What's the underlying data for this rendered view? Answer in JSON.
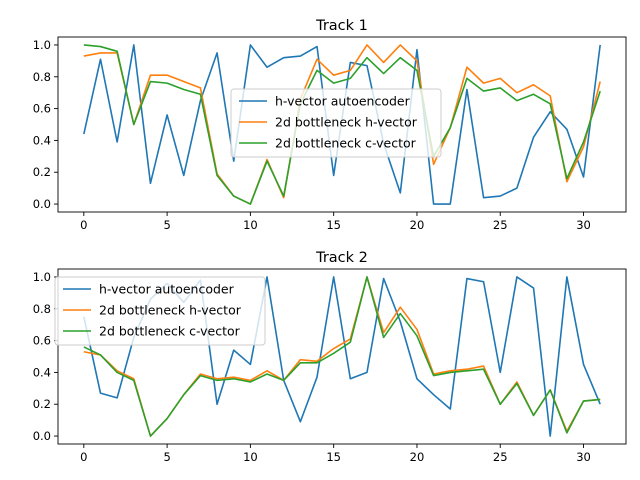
{
  "chart_data": [
    {
      "type": "line",
      "title": "Track 1",
      "xlabel": "",
      "ylabel": "",
      "xlim": [
        -1.55,
        32.55
      ],
      "ylim": [
        -0.05,
        1.05
      ],
      "xticks": [
        0,
        5,
        10,
        15,
        20,
        25,
        30
      ],
      "yticks": [
        0.0,
        0.2,
        0.4,
        0.6,
        0.8,
        1.0
      ],
      "xtick_labels": [
        "0",
        "5",
        "10",
        "15",
        "20",
        "25",
        "30"
      ],
      "ytick_labels": [
        "0.0",
        "0.2",
        "0.4",
        "0.6",
        "0.8",
        "1.0"
      ],
      "grid": false,
      "legend_position": "center",
      "x": [
        0,
        1,
        2,
        3,
        4,
        5,
        6,
        7,
        8,
        9,
        10,
        11,
        12,
        13,
        14,
        15,
        16,
        17,
        18,
        19,
        20,
        21,
        22,
        23,
        24,
        25,
        26,
        27,
        28,
        29,
        30,
        31
      ],
      "series": [
        {
          "name": "h-vector autoencoder",
          "color": "#1f77b4",
          "values": [
            0.44,
            0.91,
            0.39,
            1.0,
            0.13,
            0.56,
            0.18,
            0.65,
            0.95,
            0.27,
            1.0,
            0.86,
            0.92,
            0.93,
            0.99,
            0.18,
            0.89,
            0.87,
            0.38,
            0.07,
            0.97,
            0.0,
            0.0,
            0.72,
            0.04,
            0.05,
            0.1,
            0.42,
            0.58,
            0.47,
            0.17,
            1.0
          ]
        },
        {
          "name": "2d bottleneck h-vector",
          "color": "#ff7f0e",
          "values": [
            0.93,
            0.95,
            0.95,
            0.5,
            0.81,
            0.81,
            0.77,
            0.73,
            0.19,
            0.05,
            0.0,
            0.28,
            0.04,
            0.66,
            0.91,
            0.81,
            0.84,
            1.0,
            0.89,
            1.0,
            0.9,
            0.25,
            0.48,
            0.86,
            0.76,
            0.79,
            0.7,
            0.75,
            0.68,
            0.14,
            0.36,
            0.77
          ]
        },
        {
          "name": "2d bottleneck c-vector",
          "color": "#2ca02c",
          "values": [
            1.0,
            0.99,
            0.96,
            0.5,
            0.77,
            0.76,
            0.72,
            0.69,
            0.18,
            0.05,
            0.0,
            0.27,
            0.05,
            0.63,
            0.84,
            0.76,
            0.79,
            0.92,
            0.82,
            0.92,
            0.84,
            0.3,
            0.48,
            0.79,
            0.71,
            0.73,
            0.65,
            0.69,
            0.63,
            0.16,
            0.39,
            0.71
          ]
        }
      ]
    },
    {
      "type": "line",
      "title": "Track 2",
      "xlabel": "",
      "ylabel": "",
      "xlim": [
        -1.55,
        32.55
      ],
      "ylim": [
        -0.05,
        1.05
      ],
      "xticks": [
        0,
        5,
        10,
        15,
        20,
        25,
        30
      ],
      "yticks": [
        0.0,
        0.2,
        0.4,
        0.6,
        0.8,
        1.0
      ],
      "xtick_labels": [
        "0",
        "5",
        "10",
        "15",
        "20",
        "25",
        "30"
      ],
      "ytick_labels": [
        "0.0",
        "0.2",
        "0.4",
        "0.6",
        "0.8",
        "1.0"
      ],
      "grid": false,
      "legend_position": "upper left",
      "x": [
        0,
        1,
        2,
        3,
        4,
        5,
        6,
        7,
        8,
        9,
        10,
        11,
        12,
        13,
        14,
        15,
        16,
        17,
        18,
        19,
        20,
        21,
        22,
        23,
        24,
        25,
        26,
        27,
        28,
        29,
        30,
        31
      ],
      "series": [
        {
          "name": "h-vector autoencoder",
          "color": "#1f77b4",
          "values": [
            0.75,
            0.27,
            0.24,
            0.62,
            0.86,
            0.96,
            0.84,
            0.98,
            0.2,
            0.54,
            0.45,
            1.0,
            0.35,
            0.09,
            0.37,
            1.0,
            0.36,
            0.4,
            0.99,
            0.72,
            0.36,
            0.26,
            0.17,
            0.99,
            0.97,
            0.4,
            1.0,
            0.93,
            0.0,
            1.0,
            0.45,
            0.2
          ]
        },
        {
          "name": "2d bottleneck h-vector",
          "color": "#ff7f0e",
          "values": [
            0.53,
            0.51,
            0.41,
            0.36,
            0.0,
            0.11,
            0.26,
            0.39,
            0.36,
            0.37,
            0.35,
            0.41,
            0.35,
            0.48,
            0.47,
            0.55,
            0.61,
            1.0,
            0.65,
            0.81,
            0.67,
            0.39,
            0.41,
            0.42,
            0.44,
            0.2,
            0.34,
            0.13,
            0.29,
            0.03,
            0.22,
            0.23
          ]
        },
        {
          "name": "2d bottleneck c-vector",
          "color": "#2ca02c",
          "values": [
            0.56,
            0.51,
            0.4,
            0.35,
            0.0,
            0.11,
            0.26,
            0.38,
            0.35,
            0.36,
            0.34,
            0.39,
            0.35,
            0.46,
            0.46,
            0.52,
            0.59,
            1.0,
            0.62,
            0.77,
            0.63,
            0.38,
            0.4,
            0.41,
            0.42,
            0.2,
            0.33,
            0.13,
            0.29,
            0.02,
            0.22,
            0.23
          ]
        }
      ]
    }
  ]
}
